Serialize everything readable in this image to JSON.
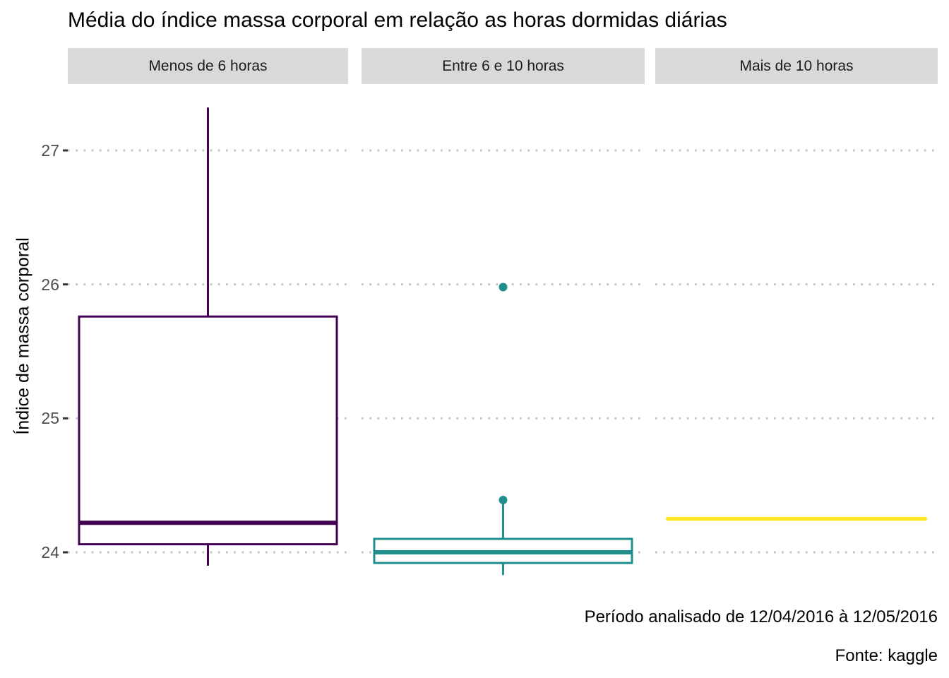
{
  "chart_data": {
    "type": "boxplot",
    "title": "Média do índice massa corporal em relação as horas dormidas diárias",
    "ylabel": "Índice de massa corporal",
    "y_ticks": [
      27,
      26,
      25,
      24
    ],
    "ylim": [
      23.73,
      27.5
    ],
    "grid": "dotted horizontal",
    "legend": "none",
    "facets": [
      "Menos de 6 horas",
      "Entre 6 e 10 horas",
      "Mais de 10 horas"
    ],
    "series": [
      {
        "facet": "Menos de 6 horas",
        "color": "#440154",
        "whisker_low": 23.9,
        "q1": 24.06,
        "median": 24.22,
        "q3": 25.76,
        "whisker_high": 27.32,
        "outliers": []
      },
      {
        "facet": "Entre 6 e 10 horas",
        "color": "#21908c",
        "whisker_low": 23.83,
        "q1": 23.92,
        "median": 24.0,
        "q3": 24.1,
        "whisker_high": 24.38,
        "outliers": [
          24.39,
          25.98
        ]
      },
      {
        "facet": "Mais de 10 horas",
        "color": "#fde725",
        "whisker_low": 24.25,
        "q1": 24.25,
        "median": 24.25,
        "q3": 24.25,
        "whisker_high": 24.25,
        "outliers": []
      }
    ],
    "captions": {
      "period": "Período analisado de 12/04/2016 à 12/05/2016",
      "source": "Fonte: kaggle"
    },
    "colors": {
      "strip_background": "#d9d9d9",
      "gridline": "#c6c6c6",
      "axis_tick": "#333333",
      "tick_label": "#4d4d4d",
      "box_fill": "#ffffff"
    }
  }
}
